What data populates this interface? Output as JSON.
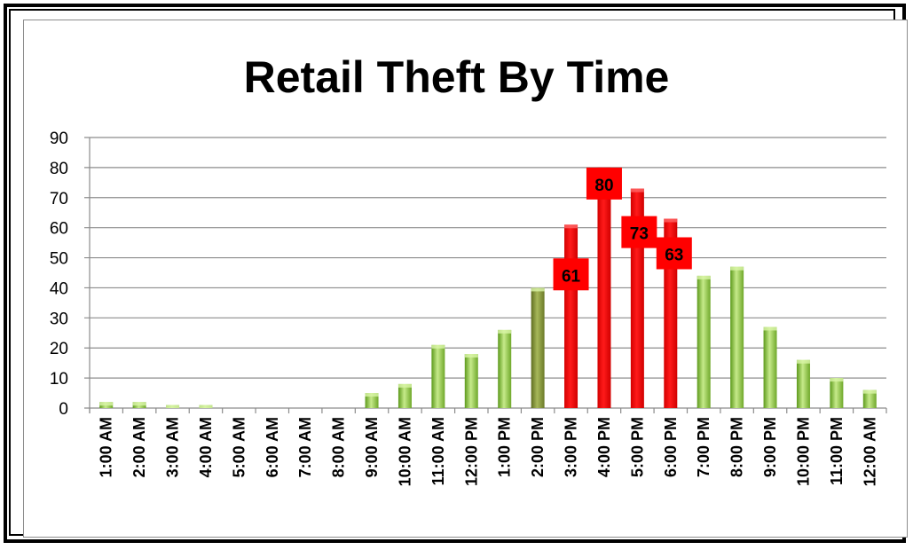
{
  "chart_data": {
    "type": "bar",
    "title": "Retail Theft By Time",
    "xlabel": "",
    "ylabel": "",
    "ylim": [
      0,
      90
    ],
    "yticks": [
      0,
      10,
      20,
      30,
      40,
      50,
      60,
      70,
      80,
      90
    ],
    "grid": true,
    "legend": "none",
    "categories": [
      "1:00 AM",
      "2:00 AM",
      "3:00 AM",
      "4:00 AM",
      "5:00 AM",
      "6:00 AM",
      "7:00 AM",
      "8:00 AM",
      "9:00 AM",
      "10:00 AM",
      "11:00 AM",
      "12:00 PM",
      "1:00 PM",
      "2:00 PM",
      "3:00 PM",
      "4:00 PM",
      "5:00 PM",
      "6:00 PM",
      "7:00 PM",
      "8:00 PM",
      "9:00 PM",
      "10:00 PM",
      "11:00 PM",
      "12:00 AM"
    ],
    "values": [
      2,
      2,
      1,
      1,
      0,
      0,
      0,
      0,
      5,
      8,
      21,
      18,
      26,
      40,
      61,
      80,
      73,
      63,
      44,
      47,
      27,
      16,
      10,
      6
    ],
    "highlighted": [
      "3:00 PM",
      "4:00 PM",
      "5:00 PM",
      "6:00 PM"
    ],
    "data_labels": [
      {
        "category": "3:00 PM",
        "text": "61"
      },
      {
        "category": "4:00 PM",
        "text": "80"
      },
      {
        "category": "5:00 PM",
        "text": "73"
      },
      {
        "category": "6:00 PM",
        "text": "63"
      }
    ],
    "colors": {
      "bar": "#8dc641",
      "bar_dark": "#8a9a3a",
      "highlight": "#ff0000",
      "label_box": "#ff0000",
      "gridline": "#8c8c8c"
    }
  }
}
